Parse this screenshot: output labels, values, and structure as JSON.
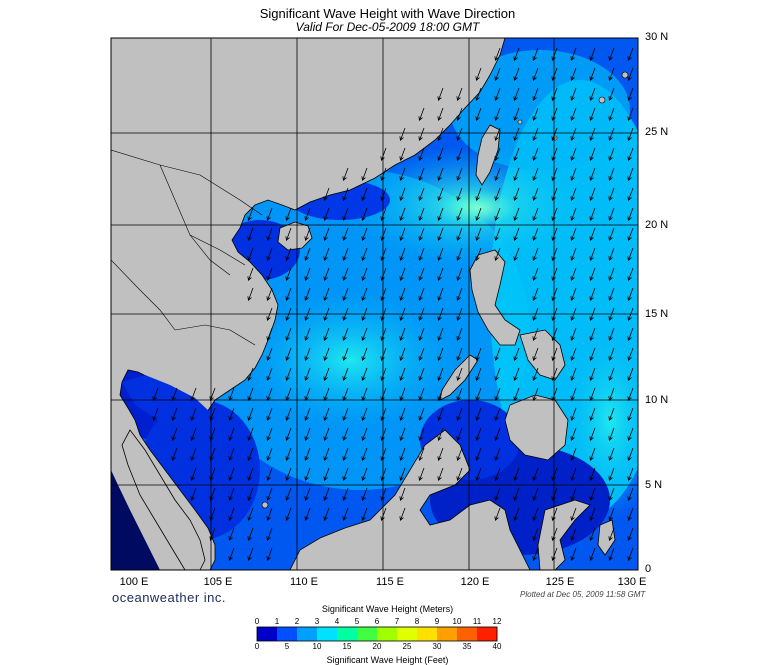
{
  "title": "Significant Wave Height with Wave Direction",
  "subtitle": "Valid For Dec-05-2009 18:00 GMT",
  "brand": "oceanweather inc.",
  "plotted": "Plotted at Dec 05, 2009 11:58 GMT",
  "lat_labels": [
    "30 N",
    "25 N",
    "20 N",
    "15 N",
    "10 N",
    "5 N",
    "0"
  ],
  "lon_labels": [
    "100 E",
    "105 E",
    "110 E",
    "115 E",
    "120 E",
    "125 E",
    "130 E"
  ],
  "colorbar": {
    "title_top": "Significant Wave Height (Meters)",
    "title_bottom": "Significant Wave Height (Feet)",
    "meters_ticks": [
      "0",
      "1",
      "2",
      "3",
      "4",
      "5",
      "6",
      "7",
      "8",
      "9",
      "10",
      "11",
      "12"
    ],
    "feet_ticks": [
      "0",
      "5",
      "10",
      "15",
      "20",
      "25",
      "30",
      "35",
      "40"
    ],
    "colors": [
      "#0000c8",
      "#0050ff",
      "#00a0ff",
      "#00e0ff",
      "#00ffa0",
      "#40ff40",
      "#a0ff00",
      "#e0ff00",
      "#ffe000",
      "#ffa000",
      "#ff6000",
      "#ff2000"
    ]
  },
  "colors": {
    "land": "#c0c0c0",
    "sea_dark": "#0018c8",
    "sea_mid": "#0058f0",
    "sea_light": "#00a8f8",
    "sea_cyan": "#10e0f0",
    "arrow": "#000000"
  },
  "wave_direction": "southwest"
}
